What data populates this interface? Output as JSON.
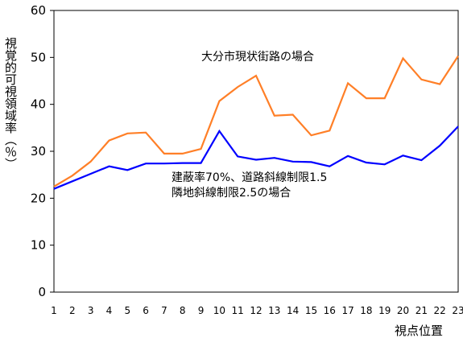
{
  "chart_data": {
    "type": "line",
    "x": [
      1,
      2,
      3,
      4,
      5,
      6,
      7,
      8,
      9,
      10,
      11,
      12,
      13,
      14,
      15,
      16,
      17,
      18,
      19,
      20,
      21,
      22,
      23
    ],
    "xlabel": "視点位置",
    "ylabel": "視覚的可視領域率（％）",
    "ylim": [
      0,
      60
    ],
    "yticks": [
      0,
      10,
      20,
      30,
      40,
      50,
      60
    ],
    "grid": false,
    "series": [
      {
        "name": "大分市現状街路の場合",
        "color": "#ff7f27",
        "values": [
          22.5,
          24.8,
          27.8,
          32.3,
          33.8,
          34.0,
          29.5,
          29.5,
          30.5,
          40.7,
          43.7,
          46.1,
          37.6,
          37.8,
          33.4,
          34.4,
          44.5,
          41.3,
          41.3,
          49.8,
          45.3,
          44.3,
          50.3
        ]
      },
      {
        "name": "建蔽率70%、道路斜線制限1.5 隣地斜線制限2.5の場合",
        "label_lines": [
          "建蔽率70%、道路斜線制限1.5",
          "隣地斜線制限2.5の場合"
        ],
        "color": "#0000ff",
        "values": [
          22.0,
          23.6,
          25.2,
          26.8,
          26.0,
          27.4,
          27.4,
          27.5,
          27.5,
          34.3,
          28.9,
          28.2,
          28.6,
          27.8,
          27.7,
          26.8,
          29.0,
          27.6,
          27.2,
          29.1,
          28.1,
          31.2,
          35.3
        ]
      }
    ]
  }
}
